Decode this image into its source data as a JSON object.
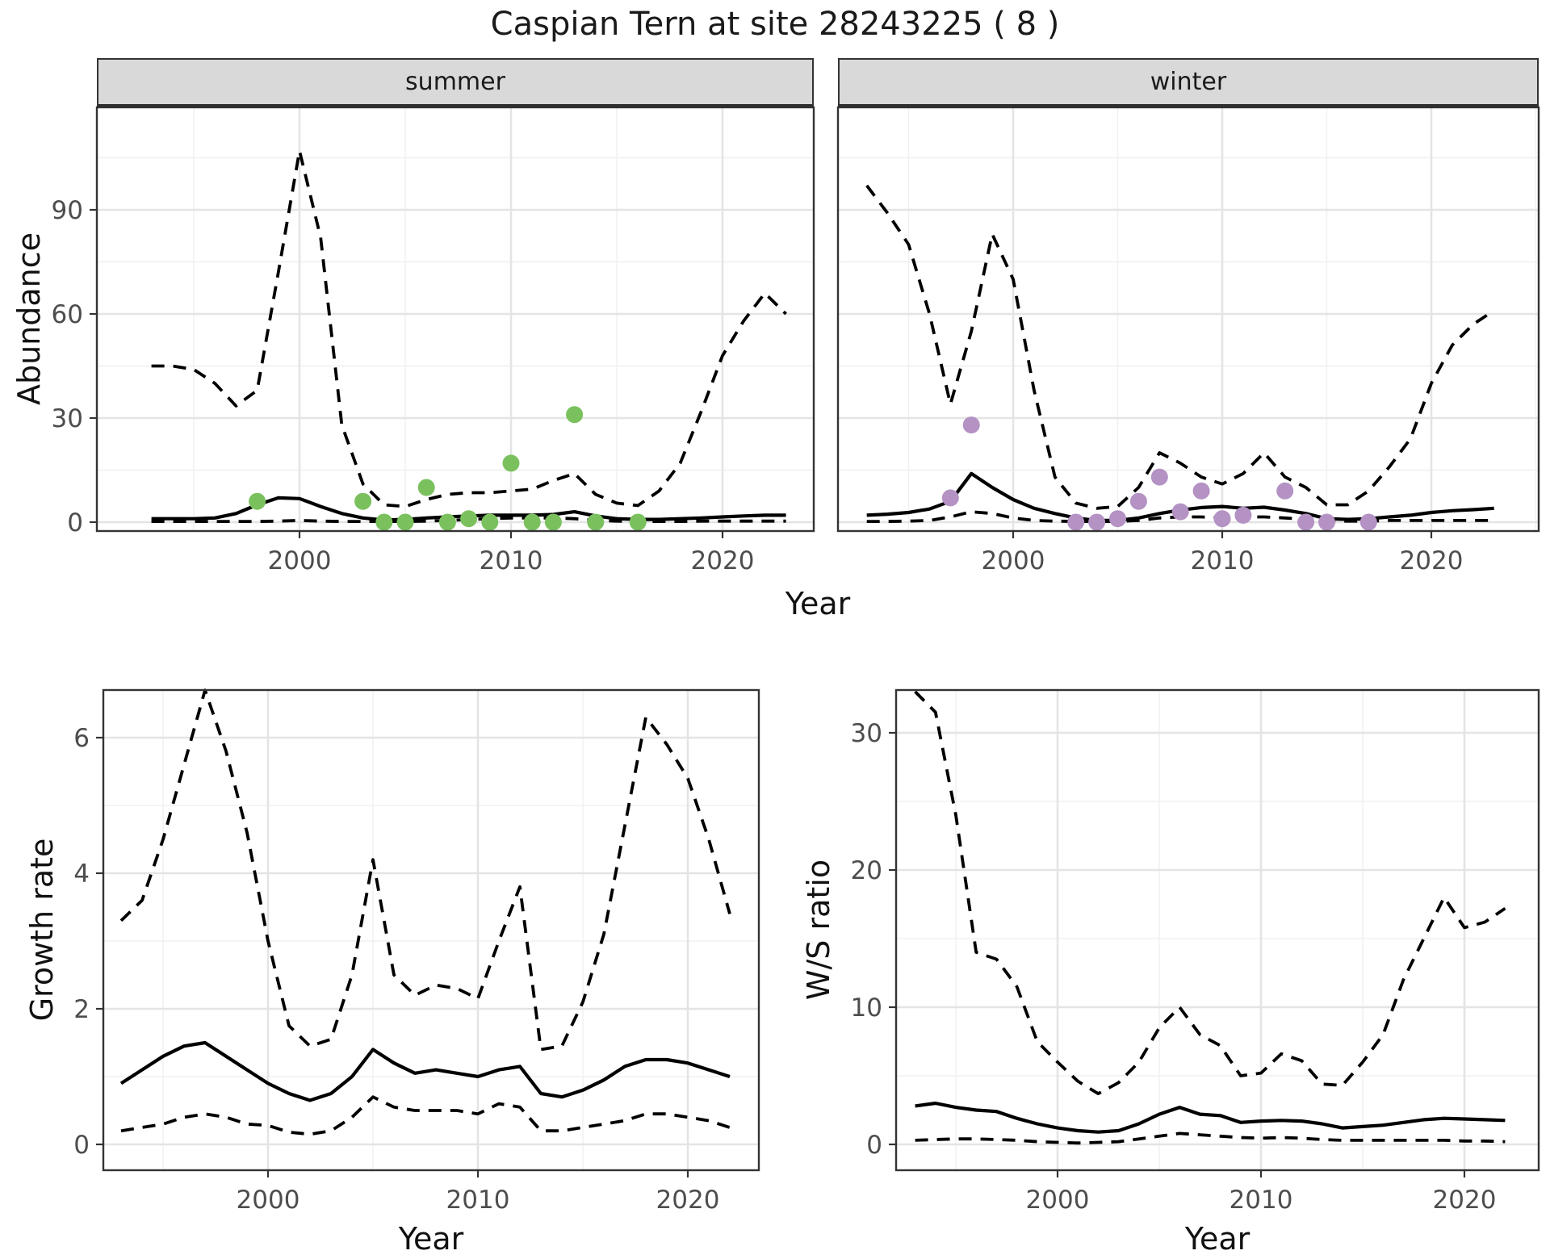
{
  "title": "Caspian Tern at site 28243225 ( 8 )",
  "colors": {
    "observed_summer": "#7AC15E",
    "observed_winter": "#B492C4",
    "line": "#000000",
    "strip_bg": "#D9D9D9",
    "panel_border": "#333333",
    "grid_major": "#E4E4E4",
    "grid_minor": "#F0F0F0",
    "tick_text": "#4D4D4D",
    "title_text": "#1A1A1A"
  },
  "chart_data": [
    {
      "id": "abundance-summer",
      "type": "line",
      "facet": "summer",
      "xlabel": "Year",
      "ylabel": "Abundance",
      "legend_position": "none",
      "grid": "on",
      "x_ticks": [
        "2000",
        "2010",
        "2020"
      ],
      "x_tick_years": [
        2000,
        2010,
        2020
      ],
      "y_ticks": [
        "0",
        "30",
        "60",
        "90"
      ],
      "y_tick_values": [
        0,
        30,
        60,
        90
      ],
      "xlim": [
        1990.4,
        2024.3
      ],
      "ylim": [
        -3,
        119
      ],
      "x": [
        1993,
        1994,
        1995,
        1996,
        1997,
        1998,
        1999,
        2000,
        2001,
        2002,
        2003,
        2004,
        2005,
        2006,
        2007,
        2008,
        2009,
        2010,
        2011,
        2012,
        2013,
        2014,
        2015,
        2016,
        2017,
        2018,
        2019,
        2020,
        2021,
        2022,
        2023
      ],
      "series": [
        {
          "name": "median",
          "style": "solid",
          "values": [
            1,
            1,
            1,
            1.2,
            2.5,
            5,
            7,
            6.8,
            4.5,
            2.5,
            1.2,
            0.6,
            0.8,
            1.2,
            1.5,
            1.8,
            2,
            2,
            2,
            2.2,
            3,
            1.8,
            1,
            0.8,
            0.8,
            1,
            1.2,
            1.5,
            1.8,
            2,
            2
          ]
        },
        {
          "name": "upper-95ci",
          "style": "dashed",
          "values": [
            45,
            45,
            44,
            40,
            33.5,
            38,
            72,
            107,
            82,
            28,
            11,
            5,
            4.5,
            6.5,
            8,
            8.5,
            8.5,
            9,
            9.5,
            12,
            14,
            8,
            5.5,
            4.8,
            9,
            17,
            32,
            48,
            58,
            66,
            60
          ]
        },
        {
          "name": "lower-95ci",
          "style": "dashed",
          "values": [
            0.2,
            0.2,
            0.2,
            0.2,
            0.2,
            0.2,
            0.3,
            0.5,
            0.3,
            0.2,
            0.2,
            0.2,
            0.2,
            0.3,
            0.5,
            0.8,
            1,
            1.2,
            1.2,
            1.2,
            1,
            0.5,
            0.3,
            0.2,
            0.2,
            0.2,
            0.3,
            0.3,
            0.3,
            0.3,
            0.3
          ]
        }
      ],
      "points": {
        "name": "observed-counts-summer",
        "color": "#7AC15E",
        "x": [
          1998,
          2003,
          2004,
          2005,
          2006,
          2007,
          2008,
          2009,
          2010,
          2011,
          2012,
          2013,
          2014,
          2016
        ],
        "y": [
          6,
          6,
          0,
          0,
          10,
          0,
          1,
          0,
          17,
          0,
          0,
          31,
          0,
          0
        ]
      }
    },
    {
      "id": "abundance-winter",
      "type": "line",
      "facet": "winter",
      "xlabel": "Year",
      "ylabel": "Abundance",
      "legend_position": "none",
      "grid": "on",
      "x_ticks": [
        "2000",
        "2010",
        "2020"
      ],
      "x_tick_years": [
        2000,
        2010,
        2020
      ],
      "y_ticks": [
        "0",
        "30",
        "60",
        "90"
      ],
      "y_tick_values": [
        0,
        30,
        60,
        90
      ],
      "xlim": [
        1991.6,
        2025.1
      ],
      "ylim": [
        -3,
        119
      ],
      "x": [
        1993,
        1994,
        1995,
        1996,
        1997,
        1998,
        1999,
        2000,
        2001,
        2002,
        2003,
        2004,
        2005,
        2006,
        2007,
        2008,
        2009,
        2010,
        2011,
        2012,
        2013,
        2014,
        2015,
        2016,
        2017,
        2018,
        2019,
        2020,
        2021,
        2022,
        2023
      ],
      "series": [
        {
          "name": "median",
          "style": "solid",
          "values": [
            2,
            2.3,
            2.8,
            3.8,
            6,
            14,
            10,
            6.5,
            4,
            2.5,
            1.2,
            0.5,
            0.5,
            1.2,
            2.5,
            3.5,
            4.2,
            4.5,
            4,
            4.3,
            3.5,
            2.5,
            1,
            0.8,
            1,
            1.5,
            2,
            2.8,
            3.3,
            3.6,
            4
          ]
        },
        {
          "name": "upper-95ci",
          "style": "dashed",
          "values": [
            97,
            89,
            80,
            60,
            34,
            55,
            83,
            70,
            38,
            13,
            5.5,
            4,
            4.5,
            10,
            20,
            17,
            13,
            11,
            14,
            20,
            13,
            10,
            5,
            5,
            9,
            16,
            24,
            40,
            51,
            57,
            61
          ]
        },
        {
          "name": "lower-95ci",
          "style": "dashed",
          "values": [
            0.2,
            0.2,
            0.3,
            0.5,
            1.5,
            3,
            2.5,
            1.2,
            0.5,
            0.3,
            0.2,
            0.2,
            0.2,
            0.5,
            1.2,
            1.5,
            1.5,
            1.2,
            1.5,
            1.5,
            1.2,
            0.8,
            0.3,
            0.3,
            0.3,
            0.5,
            0.5,
            0.5,
            0.5,
            0.5,
            0.5
          ]
        }
      ],
      "points": {
        "name": "observed-counts-winter",
        "color": "#B492C4",
        "x": [
          1997,
          1998,
          2003,
          2004,
          2005,
          2006,
          2007,
          2008,
          2009,
          2010,
          2011,
          2013,
          2014,
          2015,
          2017
        ],
        "y": [
          7,
          28,
          0,
          0,
          1,
          6,
          13,
          3,
          9,
          1,
          2,
          9,
          0,
          0,
          0
        ]
      }
    },
    {
      "id": "growth-rate",
      "type": "line",
      "facet": "",
      "xlabel": "Year",
      "ylabel": "Growth rate",
      "legend_position": "none",
      "grid": "on",
      "x_ticks": [
        "2000",
        "2010",
        "2020"
      ],
      "x_tick_years": [
        2000,
        2010,
        2020
      ],
      "y_ticks": [
        "0",
        "2",
        "4",
        "6"
      ],
      "y_tick_values": [
        0,
        2,
        4,
        6
      ],
      "xlim": [
        1992.2,
        2023.4
      ],
      "ylim": [
        -0.4,
        6.7
      ],
      "x": [
        1993,
        1994,
        1995,
        1996,
        1997,
        1998,
        1999,
        2000,
        2001,
        2002,
        2003,
        2004,
        2005,
        2006,
        2007,
        2008,
        2009,
        2010,
        2011,
        2012,
        2013,
        2014,
        2015,
        2016,
        2017,
        2018,
        2019,
        2020,
        2021,
        2022
      ],
      "series": [
        {
          "name": "median",
          "style": "solid",
          "values": [
            0.9,
            1.1,
            1.3,
            1.45,
            1.5,
            1.3,
            1.1,
            0.9,
            0.75,
            0.65,
            0.75,
            1.0,
            1.4,
            1.2,
            1.05,
            1.1,
            1.05,
            1.0,
            1.1,
            1.15,
            0.75,
            0.7,
            0.8,
            0.95,
            1.15,
            1.25,
            1.25,
            1.2,
            1.1,
            1.0
          ]
        },
        {
          "name": "upper-95ci",
          "style": "dashed",
          "values": [
            3.3,
            3.6,
            4.5,
            5.6,
            6.7,
            5.8,
            4.6,
            3.0,
            1.75,
            1.45,
            1.55,
            2.5,
            4.2,
            2.5,
            2.2,
            2.35,
            2.3,
            2.15,
            3.0,
            3.8,
            1.4,
            1.45,
            2.1,
            3.1,
            4.7,
            6.3,
            5.9,
            5.4,
            4.5,
            3.4
          ]
        },
        {
          "name": "lower-95ci",
          "style": "dashed",
          "values": [
            0.2,
            0.25,
            0.3,
            0.4,
            0.45,
            0.4,
            0.3,
            0.28,
            0.18,
            0.15,
            0.2,
            0.4,
            0.7,
            0.55,
            0.5,
            0.5,
            0.5,
            0.45,
            0.6,
            0.55,
            0.2,
            0.2,
            0.25,
            0.3,
            0.35,
            0.45,
            0.45,
            0.4,
            0.35,
            0.25
          ]
        }
      ],
      "points": null
    },
    {
      "id": "ws-ratio",
      "type": "line",
      "facet": "",
      "xlabel": "Year",
      "ylabel": "W/S ratio",
      "legend_position": "none",
      "grid": "on",
      "x_ticks": [
        "2000",
        "2010",
        "2020"
      ],
      "x_tick_years": [
        2000,
        2010,
        2020
      ],
      "y_ticks": [
        "0",
        "10",
        "20",
        "30"
      ],
      "y_tick_values": [
        0,
        10,
        20,
        30
      ],
      "xlim": [
        1992.1,
        2023.7
      ],
      "ylim": [
        -2,
        33.5
      ],
      "x": [
        1993,
        1994,
        1995,
        1996,
        1997,
        1998,
        1999,
        2000,
        2001,
        2002,
        2003,
        2004,
        2005,
        2006,
        2007,
        2008,
        2009,
        2010,
        2011,
        2012,
        2013,
        2014,
        2015,
        2016,
        2017,
        2018,
        2019,
        2020,
        2021,
        2022
      ],
      "series": [
        {
          "name": "median",
          "style": "solid",
          "values": [
            2.8,
            3.0,
            2.7,
            2.5,
            2.4,
            1.9,
            1.5,
            1.2,
            1.0,
            0.9,
            1.0,
            1.5,
            2.2,
            2.7,
            2.2,
            2.1,
            1.6,
            1.7,
            1.75,
            1.7,
            1.5,
            1.2,
            1.3,
            1.4,
            1.6,
            1.8,
            1.9,
            1.85,
            1.8,
            1.75
          ]
        },
        {
          "name": "upper-95ci",
          "style": "dashed",
          "values": [
            33,
            31.5,
            24,
            14,
            13.5,
            11.5,
            7.5,
            6,
            4.6,
            3.7,
            4.5,
            6,
            8.5,
            10,
            8,
            7.2,
            5,
            5.2,
            6.6,
            6.1,
            4.4,
            4.3,
            6,
            8,
            12,
            15,
            18,
            15.8,
            16.2,
            17.2
          ]
        },
        {
          "name": "lower-95ci",
          "style": "dashed",
          "values": [
            0.3,
            0.35,
            0.4,
            0.4,
            0.35,
            0.3,
            0.2,
            0.15,
            0.1,
            0.15,
            0.2,
            0.4,
            0.6,
            0.8,
            0.7,
            0.6,
            0.5,
            0.45,
            0.5,
            0.45,
            0.35,
            0.3,
            0.3,
            0.3,
            0.3,
            0.3,
            0.3,
            0.25,
            0.25,
            0.2
          ]
        }
      ],
      "points": null
    }
  ]
}
